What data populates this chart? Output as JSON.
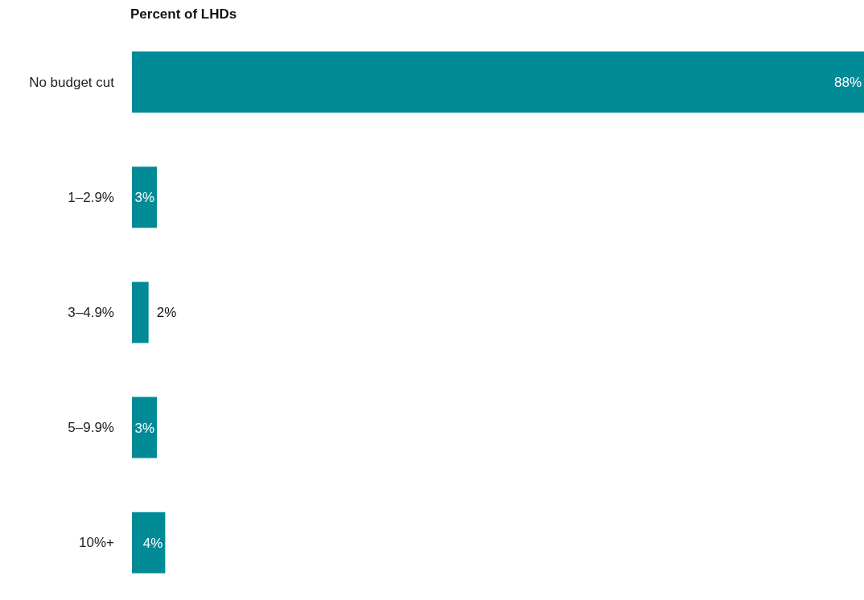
{
  "chart_data": {
    "type": "bar",
    "orientation": "horizontal",
    "title": "Percent of LHDs",
    "categories": [
      "No budget cut",
      "1–2.9%",
      "3–4.9%",
      "5–9.9%",
      "10%+"
    ],
    "values": [
      88,
      3,
      2,
      3,
      4
    ],
    "color": "#008b96",
    "value_labels": [
      "88%",
      "3%",
      "2%",
      "3%",
      "4%"
    ],
    "grid": false,
    "legend": false
  }
}
